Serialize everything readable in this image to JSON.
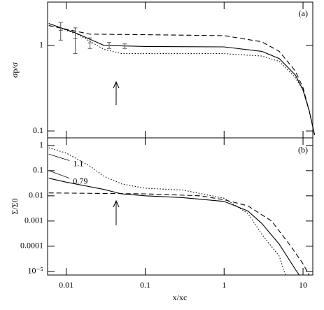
{
  "chart_data": [
    {
      "type": "line",
      "panel_label": "(a)",
      "ylabel": "σp/σ",
      "yscale": "log",
      "ylim": [
        0.083,
        3.2
      ],
      "yticks": [
        0.1,
        1
      ],
      "series": [
        {
          "style": "solid",
          "color": "#000000",
          "x": [
            0.006,
            0.013,
            0.03,
            0.1,
            1,
            3,
            5,
            8,
            10,
            12,
            14
          ],
          "values": [
            1.8,
            1.4,
            1.0,
            0.97,
            0.96,
            0.85,
            0.7,
            0.45,
            0.3,
            0.17,
            0.09
          ]
        },
        {
          "style": "dashed",
          "color": "#000000",
          "x": [
            0.006,
            0.02,
            0.1,
            1,
            3,
            5,
            8,
            10,
            12,
            14
          ],
          "values": [
            1.7,
            1.35,
            1.33,
            1.3,
            1.1,
            0.85,
            0.5,
            0.32,
            0.17,
            0.09
          ]
        },
        {
          "style": "dotted",
          "color": "#000000",
          "x": [
            0.006,
            0.015,
            0.03,
            0.05,
            1,
            3,
            5,
            8,
            10,
            12,
            14
          ],
          "values": [
            1.8,
            1.3,
            0.9,
            0.8,
            0.8,
            0.75,
            0.65,
            0.42,
            0.3,
            0.17,
            0.09
          ]
        }
      ],
      "errorbars": {
        "color": "#555555",
        "x": [
          0.0085,
          0.013,
          0.02,
          0.035,
          0.055
        ],
        "values": [
          1.5,
          1.2,
          1.07,
          1.0,
          0.98
        ],
        "errors": [
          0.35,
          0.4,
          0.15,
          0.08,
          0.06
        ]
      }
    },
    {
      "type": "line",
      "panel_label": "(b)",
      "ylabel": "Σ/Σ0",
      "xlabel": "x/xc",
      "xscale": "log",
      "yscale": "log",
      "xlim": [
        0.0058,
        13.3
      ],
      "xticks": [
        0.01,
        0.1,
        1,
        10
      ],
      "ylim": [
        7.2e-06,
        2
      ],
      "yticks": [
        1,
        0.1,
        0.01,
        0.001,
        0.0001,
        {
          "value": 1e-05,
          "label": "10⁻⁵"
        }
      ],
      "series": [
        {
          "style": "solid",
          "color": "#000000",
          "x": [
            0.006,
            0.01,
            0.03,
            0.05,
            0.1,
            0.3,
            1,
            2,
            3,
            5,
            8,
            9
          ],
          "values": [
            0.05,
            0.035,
            0.018,
            0.012,
            0.01,
            0.0085,
            0.006,
            0.0025,
            0.0008,
            0.00012,
            1.2e-05,
            7e-06
          ]
        },
        {
          "style": "dashed",
          "color": "#000000",
          "x": [
            0.006,
            0.1,
            0.5,
            1,
            2,
            4,
            7,
            10,
            12
          ],
          "values": [
            0.013,
            0.012,
            0.01,
            0.007,
            0.004,
            0.001,
            0.0001,
            2e-05,
            7e-06
          ]
        },
        {
          "style": "dotted",
          "color": "#000000",
          "x": [
            0.006,
            0.01,
            0.02,
            0.03,
            0.05,
            0.1,
            0.3,
            1,
            2,
            3,
            5,
            6
          ],
          "values": [
            0.8,
            0.5,
            0.15,
            0.06,
            0.03,
            0.02,
            0.017,
            0.008,
            0.002,
            0.0003,
            4e-05,
            7e-06
          ]
        },
        {
          "name": "1.1",
          "style": "thin",
          "color": "#000000",
          "x": [
            0.006,
            0.011
          ],
          "values": [
            0.45,
            0.25
          ]
        },
        {
          "name": "0.79",
          "style": "thin",
          "color": "#000000",
          "x": [
            0.006,
            0.011
          ],
          "values": [
            0.1,
            0.05
          ]
        }
      ]
    }
  ]
}
